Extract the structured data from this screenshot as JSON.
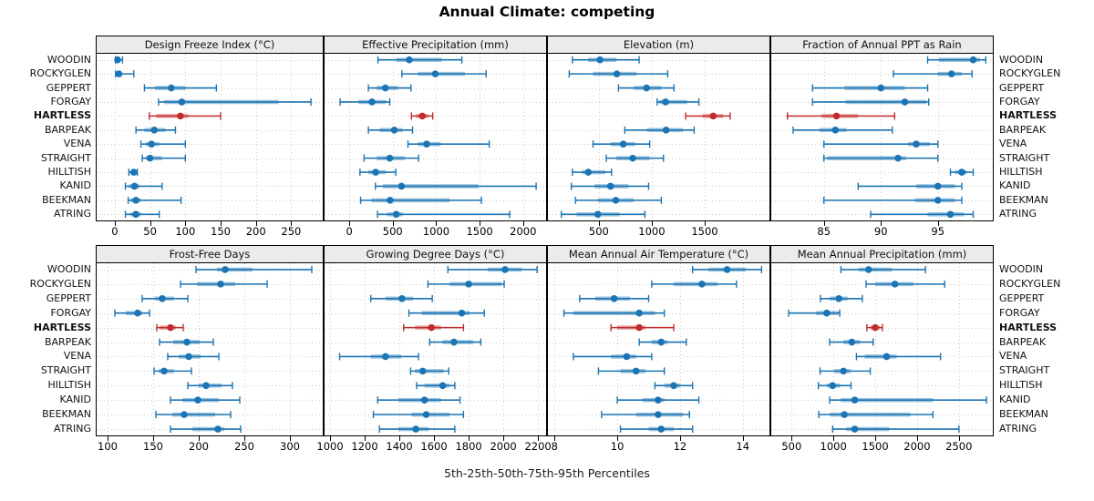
{
  "title": "Annual Climate: competing",
  "caption": "5th-25th-50th-75th-95th Percentiles",
  "percentiles": [
    5,
    25,
    50,
    75,
    95
  ],
  "stations": [
    "WOODIN",
    "ROCKYGLEN",
    "GEPPERT",
    "FORGAY",
    "HARTLESS",
    "BARPEAK",
    "VENA",
    "STRAIGHT",
    "HILLTISH",
    "KANID",
    "BEEKMAN",
    "ATRING"
  ],
  "highlight_station": "HARTLESS",
  "colors": {
    "normal": "#1B74B3",
    "highlight": "#C02B2B",
    "grid": "#c9c9c9",
    "strip_bg": "#ebebeb",
    "panel_border": "#000000",
    "band_opacity": 0.42
  },
  "chart_data": [
    {
      "type": "dotplot-interval",
      "title": "Design Freeze Index (°C)",
      "row": 0,
      "col": 0,
      "xlim": [
        -27,
        296
      ],
      "ticks": [
        0,
        50,
        100,
        150,
        200,
        250
      ],
      "values": [
        [
          1,
          2,
          4,
          8,
          11
        ],
        [
          1,
          2,
          6,
          9,
          27
        ],
        [
          42,
          57,
          80,
          100,
          144
        ],
        [
          62,
          70,
          95,
          232,
          278
        ],
        [
          49,
          59,
          93,
          104,
          150
        ],
        [
          30,
          42,
          56,
          72,
          86
        ],
        [
          37,
          44,
          52,
          63,
          100
        ],
        [
          39,
          44,
          50,
          67,
          100
        ],
        [
          20,
          22,
          27,
          31,
          32
        ],
        [
          15,
          20,
          28,
          35,
          67
        ],
        [
          19,
          22,
          30,
          37,
          94
        ],
        [
          15,
          22,
          30,
          37,
          63
        ]
      ]
    },
    {
      "type": "dotplot-interval",
      "title": "Effective Precipitation (mm)",
      "row": 0,
      "col": 1,
      "xlim": [
        -295,
        2275
      ],
      "ticks": [
        0,
        500,
        1000,
        1500,
        2000
      ],
      "values": [
        [
          330,
          540,
          690,
          1065,
          1295
        ],
        [
          605,
          790,
          990,
          1330,
          1575
        ],
        [
          220,
          315,
          415,
          560,
          710
        ],
        [
          -105,
          105,
          262,
          420,
          466
        ],
        [
          715,
          770,
          840,
          910,
          960
        ],
        [
          220,
          350,
          518,
          613,
          728
        ],
        [
          675,
          790,
          890,
          1050,
          1610
        ],
        [
          170,
          315,
          466,
          640,
          797
        ],
        [
          123,
          220,
          304,
          420,
          535
        ],
        [
          300,
          385,
          600,
          1485,
          2150
        ],
        [
          130,
          255,
          470,
          1155,
          1520
        ],
        [
          325,
          435,
          540,
          615,
          1845
        ]
      ]
    },
    {
      "type": "dotplot-interval",
      "title": "Elevation (m)",
      "row": 0,
      "col": 2,
      "xlim": [
        10,
        2120
      ],
      "ticks": [
        500,
        1000,
        1500
      ],
      "values": [
        [
          250,
          400,
          510,
          665,
          880
        ],
        [
          220,
          445,
          670,
          855,
          1150
        ],
        [
          685,
          830,
          950,
          1090,
          1210
        ],
        [
          1050,
          1065,
          1130,
          1335,
          1445
        ],
        [
          1320,
          1480,
          1580,
          1675,
          1740
        ],
        [
          745,
          955,
          1135,
          1295,
          1400
        ],
        [
          445,
          610,
          730,
          845,
          980
        ],
        [
          570,
          665,
          820,
          980,
          1110
        ],
        [
          250,
          340,
          400,
          560,
          620
        ],
        [
          240,
          460,
          610,
          780,
          970
        ],
        [
          280,
          490,
          660,
          830,
          1090
        ],
        [
          145,
          290,
          490,
          695,
          935
        ]
      ]
    },
    {
      "type": "dotplot-interval",
      "title": "Fraction of Annual PPT as Rain",
      "row": 0,
      "col": 3,
      "xlim": [
        80.3,
        99.9
      ],
      "ticks": [
        85,
        90,
        95
      ],
      "values": [
        [
          94.1,
          95.1,
          98.1,
          98.7,
          99.2
        ],
        [
          91.1,
          95.0,
          96.2,
          97.1,
          98.0
        ],
        [
          84.0,
          86.8,
          90.0,
          92.1,
          94.1
        ],
        [
          84.0,
          86.9,
          92.1,
          94.0,
          94.2
        ],
        [
          81.8,
          84.8,
          86.1,
          88.0,
          91.2
        ],
        [
          82.3,
          84.6,
          86.0,
          87.0,
          91.0
        ],
        [
          85.0,
          92.4,
          93.1,
          94.3,
          95.0
        ],
        [
          85.0,
          85.3,
          91.5,
          92.2,
          95.0
        ],
        [
          96.1,
          96.5,
          97.1,
          97.5,
          98.1
        ],
        [
          88.0,
          93.1,
          95.0,
          96.5,
          97.1
        ],
        [
          85.0,
          93.0,
          95.0,
          96.5,
          97.1
        ],
        [
          89.1,
          94.1,
          96.1,
          97.3,
          98.1
        ]
      ]
    },
    {
      "type": "dotplot-interval",
      "title": "Frost-Free Days",
      "row": 1,
      "col": 0,
      "xlim": [
        87,
        337
      ],
      "ticks": [
        100,
        150,
        200,
        250,
        300
      ],
      "values": [
        [
          197,
          220,
          229,
          259,
          324
        ],
        [
          180,
          198,
          224,
          240,
          275
        ],
        [
          138,
          152,
          160,
          173,
          188
        ],
        [
          108,
          120,
          133,
          138,
          146
        ],
        [
          154,
          157,
          169,
          175,
          183
        ],
        [
          157,
          172,
          187,
          201,
          216
        ],
        [
          166,
          178,
          189,
          202,
          222
        ],
        [
          151,
          156,
          162,
          173,
          192
        ],
        [
          188,
          200,
          208,
          225,
          237
        ],
        [
          169,
          182,
          199,
          222,
          245
        ],
        [
          153,
          171,
          184,
          218,
          235
        ],
        [
          169,
          193,
          221,
          228,
          246
        ]
      ]
    },
    {
      "type": "dotplot-interval",
      "title": "Growing Degree Days (°C)",
      "row": 1,
      "col": 1,
      "xlim": [
        963,
        2252
      ],
      "ticks": [
        1000,
        1200,
        1400,
        1600,
        1800,
        2000,
        2200
      ],
      "values": [
        [
          1680,
          1910,
          2010,
          2105,
          2195
        ],
        [
          1565,
          1690,
          1800,
          1990,
          2005
        ],
        [
          1235,
          1320,
          1415,
          1480,
          1590
        ],
        [
          1455,
          1530,
          1760,
          1805,
          1890
        ],
        [
          1425,
          1490,
          1585,
          1640,
          1770
        ],
        [
          1575,
          1650,
          1715,
          1825,
          1870
        ],
        [
          1055,
          1235,
          1320,
          1410,
          1510
        ],
        [
          1465,
          1490,
          1535,
          1655,
          1685
        ],
        [
          1500,
          1545,
          1650,
          1690,
          1720
        ],
        [
          1275,
          1395,
          1545,
          1640,
          1750
        ],
        [
          1250,
          1470,
          1555,
          1690,
          1770
        ],
        [
          1285,
          1395,
          1495,
          1570,
          1720
        ]
      ]
    },
    {
      "type": "dotplot-interval",
      "title": "Mean Annual Air Temperature (°C)",
      "row": 1,
      "col": 2,
      "xlim": [
        7.76,
        14.88
      ],
      "ticks": [
        8,
        10,
        12,
        14
      ],
      "values": [
        [
          12.4,
          12.9,
          13.5,
          14.1,
          14.6
        ],
        [
          11.1,
          11.8,
          12.7,
          13.2,
          13.8
        ],
        [
          8.8,
          9.3,
          9.9,
          10.4,
          11.0
        ],
        [
          8.3,
          8.6,
          10.7,
          11.2,
          11.5
        ],
        [
          9.8,
          10.0,
          10.7,
          10.9,
          11.8
        ],
        [
          10.7,
          11.1,
          11.4,
          11.6,
          12.2
        ],
        [
          8.6,
          9.8,
          10.3,
          10.6,
          11.1
        ],
        [
          9.4,
          10.1,
          10.6,
          10.9,
          11.5
        ],
        [
          11.2,
          11.5,
          11.8,
          12.0,
          12.4
        ],
        [
          10.0,
          10.8,
          11.3,
          11.5,
          12.6
        ],
        [
          9.5,
          10.6,
          11.3,
          12.1,
          12.3
        ],
        [
          10.1,
          11.0,
          11.4,
          11.8,
          12.4
        ]
      ]
    },
    {
      "type": "dotplot-interval",
      "title": "Mean Annual Precipitation (mm)",
      "row": 1,
      "col": 3,
      "xlim": [
        246,
        2916
      ],
      "ticks": [
        500,
        1000,
        1500,
        2000,
        2500
      ],
      "values": [
        [
          1090,
          1300,
          1420,
          1700,
          2100
        ],
        [
          1390,
          1500,
          1735,
          1955,
          2330
        ],
        [
          845,
          955,
          1065,
          1170,
          1345
        ],
        [
          465,
          790,
          920,
          1065,
          1075
        ],
        [
          1400,
          1445,
          1500,
          1555,
          1585
        ],
        [
          955,
          1120,
          1220,
          1320,
          1475
        ],
        [
          1275,
          1375,
          1635,
          1755,
          2280
        ],
        [
          840,
          1010,
          1120,
          1210,
          1440
        ],
        [
          820,
          920,
          990,
          1080,
          1210
        ],
        [
          955,
          1085,
          1255,
          2190,
          2830
        ],
        [
          825,
          955,
          1130,
          1920,
          2190
        ],
        [
          990,
          1155,
          1255,
          1665,
          2500
        ]
      ]
    }
  ]
}
